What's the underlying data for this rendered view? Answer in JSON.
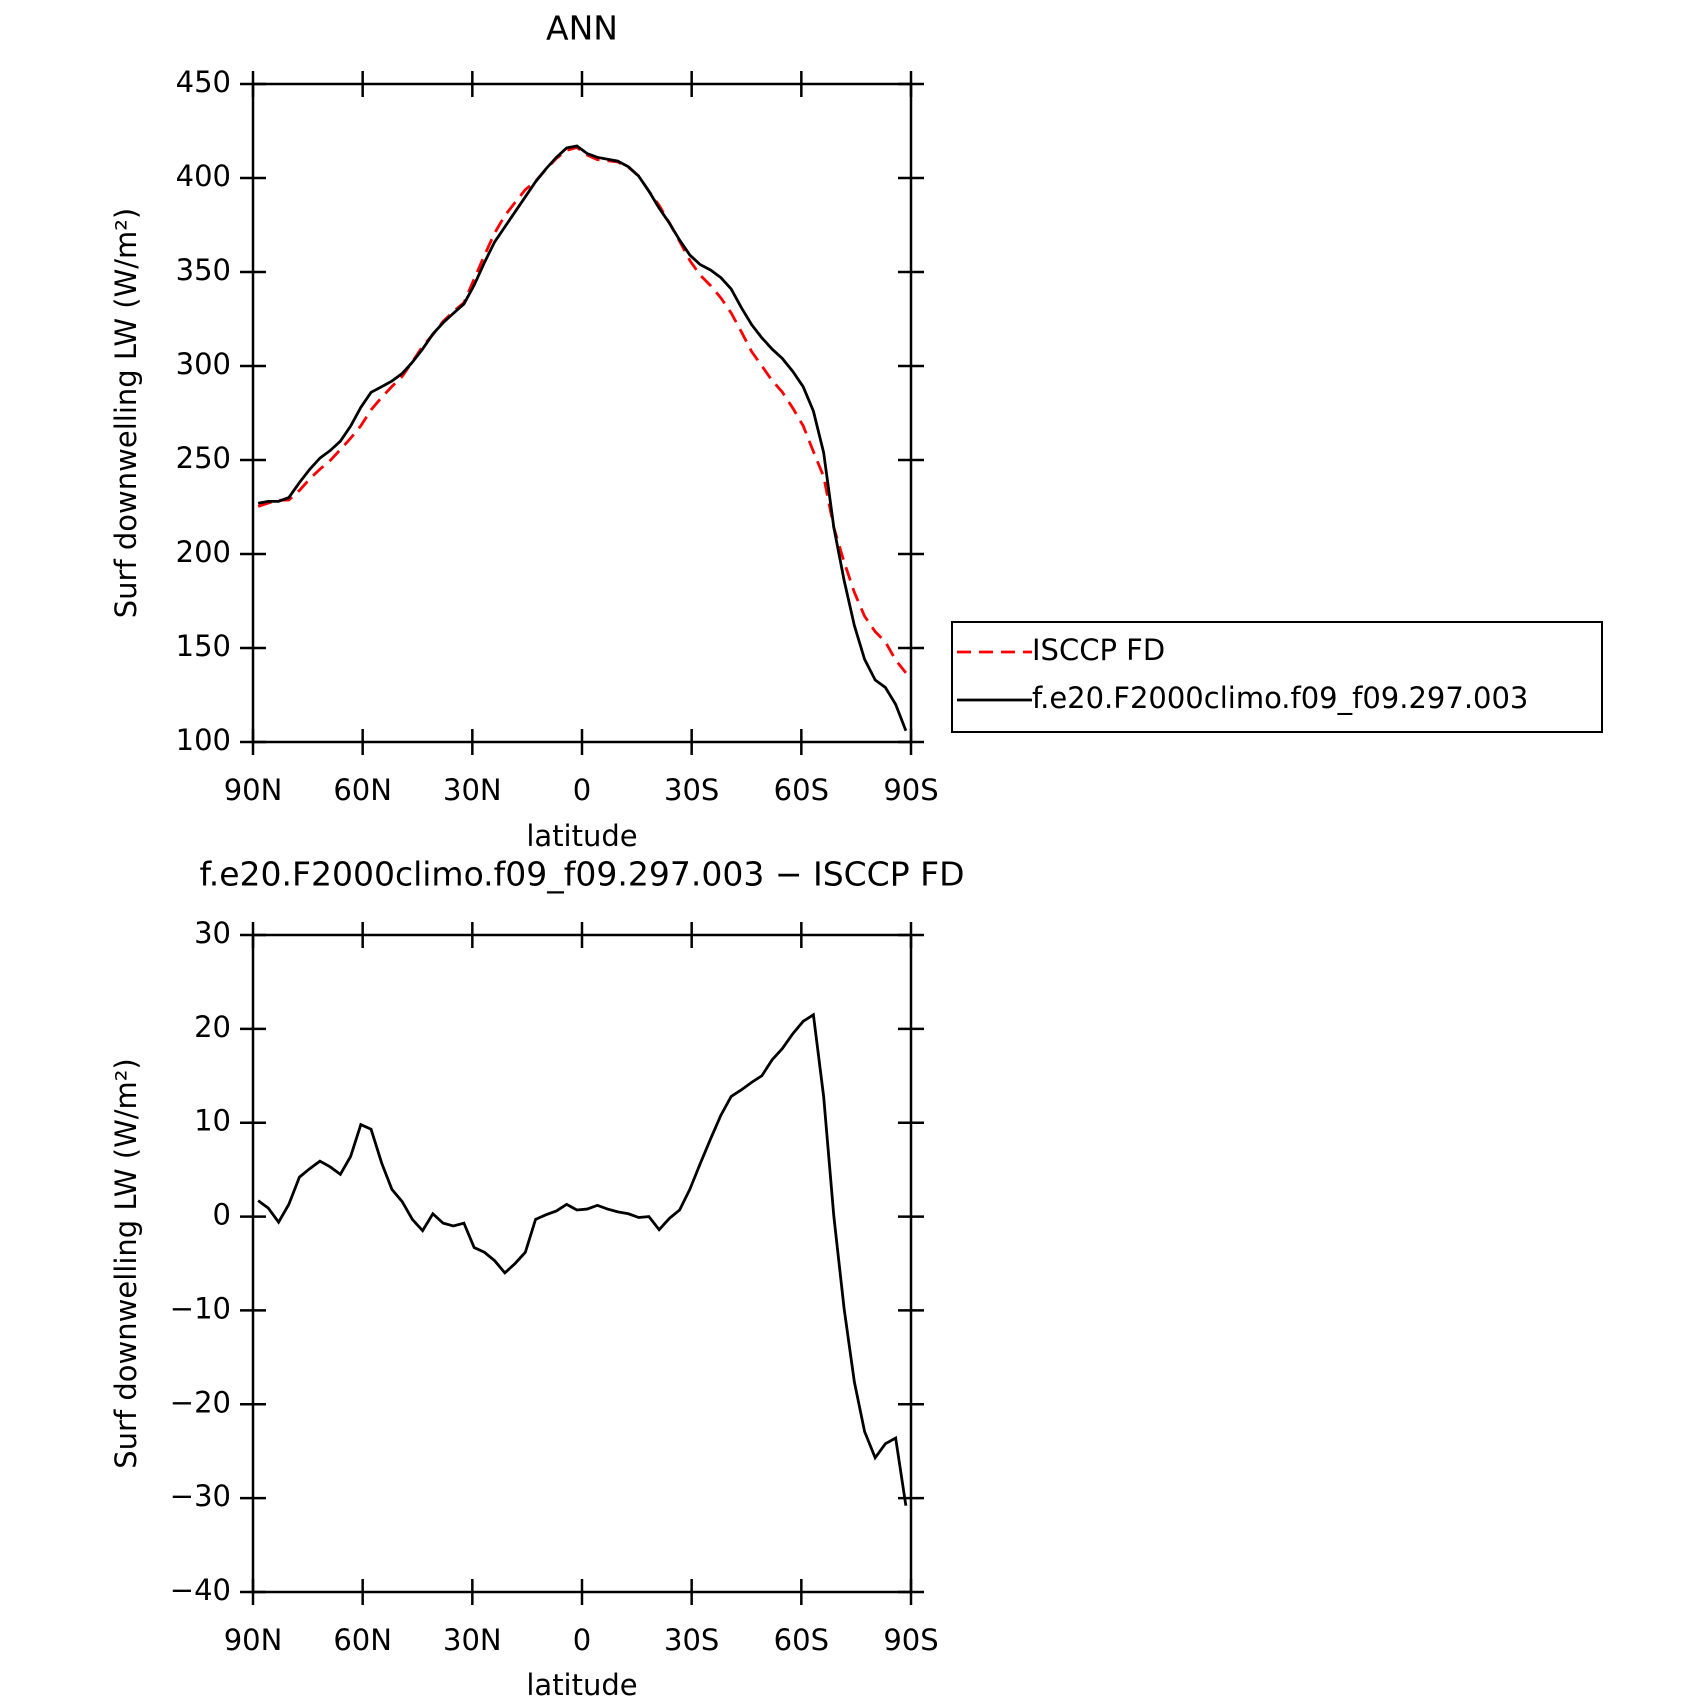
{
  "chart_data": [
    {
      "type": "line",
      "title": "ANN",
      "xlabel": "latitude",
      "ylabel": "Surf downwelling LW (W/m²)",
      "x": [
        88.6,
        85.8,
        83.0,
        80.2,
        77.3,
        74.5,
        71.7,
        68.9,
        66.1,
        63.3,
        60.5,
        57.7,
        54.8,
        52.0,
        49.2,
        46.4,
        43.6,
        40.8,
        38.0,
        35.2,
        32.3,
        29.5,
        26.7,
        23.9,
        21.1,
        18.3,
        15.5,
        12.7,
        9.8,
        7.0,
        4.2,
        1.4,
        -1.4,
        -4.2,
        -7.0,
        -9.8,
        -12.7,
        -15.5,
        -18.3,
        -21.1,
        -23.9,
        -26.7,
        -29.5,
        -32.3,
        -35.2,
        -38.0,
        -40.8,
        -43.6,
        -46.4,
        -49.2,
        -52.0,
        -54.8,
        -57.7,
        -60.5,
        -63.3,
        -66.1,
        -68.9,
        -71.7,
        -74.5,
        -77.3,
        -80.2,
        -83.0,
        -85.8,
        -88.6
      ],
      "series": [
        {
          "name": "ISCCP FD",
          "color": "#ff0000",
          "line_style": "dashed",
          "values": [
            225.3,
            227.1,
            228.6,
            228.7,
            233.8,
            239.9,
            245.1,
            249.7,
            255.5,
            261.6,
            268.2,
            276.7,
            283.3,
            289.1,
            294.4,
            302.3,
            310.5,
            316.7,
            323.7,
            329.0,
            333.7,
            346.3,
            358.8,
            370.7,
            380.0,
            387.0,
            393.8,
            398.3,
            404.8,
            410.4,
            414.7,
            416.3,
            412.2,
            409.8,
            409.2,
            408.5,
            405.7,
            401.1,
            393.0,
            385.4,
            376.2,
            366.3,
            356.1,
            348.4,
            342.7,
            336.2,
            328.2,
            318.2,
            307.7,
            300.0,
            292.3,
            286.1,
            277.5,
            268.2,
            254.5,
            241.2,
            214.0,
            195.8,
            179.6,
            166.9,
            158.7,
            153.2,
            143.6,
            136.8
          ]
        },
        {
          "name": "f.e20.F2000climo.f09_f09.297.003",
          "color": "#000000",
          "line_style": "solid",
          "values": [
            227,
            228,
            228,
            230,
            238,
            245,
            251,
            255,
            260,
            268,
            278,
            286,
            289,
            292,
            296,
            302,
            309,
            317,
            323,
            328,
            333,
            343,
            355,
            366,
            374,
            382,
            390,
            398,
            405,
            411,
            416,
            417,
            413,
            411,
            410,
            409,
            406,
            401,
            393,
            384,
            376,
            367,
            359,
            354,
            351,
            347,
            341,
            331,
            322,
            315,
            309,
            304,
            297,
            289,
            276,
            254,
            214,
            186,
            162,
            144,
            133,
            129,
            120,
            106
          ]
        }
      ],
      "xlim": [
        90,
        -90
      ],
      "ylim": [
        100,
        450
      ],
      "xticks": [
        {
          "value": 90,
          "label": "90N"
        },
        {
          "value": 60,
          "label": "60N"
        },
        {
          "value": 30,
          "label": "30N"
        },
        0,
        {
          "value": -30,
          "label": "30S"
        },
        {
          "value": -60,
          "label": "60S"
        },
        {
          "value": -90,
          "label": "90S"
        }
      ],
      "yticks": [
        100,
        150,
        200,
        250,
        300,
        350,
        400,
        450
      ],
      "legend": "right"
    },
    {
      "type": "line",
      "title": "f.e20.F2000climo.f09_f09.297.003 − ISCCP FD",
      "xlabel": "latitude",
      "ylabel": "Surf downwelling LW (W/m²)",
      "x": [
        88.6,
        85.8,
        83.0,
        80.2,
        77.3,
        74.5,
        71.7,
        68.9,
        66.1,
        63.3,
        60.5,
        57.7,
        54.8,
        52.0,
        49.2,
        46.4,
        43.6,
        40.8,
        38.0,
        35.2,
        32.3,
        29.5,
        26.7,
        23.9,
        21.1,
        18.3,
        15.5,
        12.7,
        9.8,
        7.0,
        4.2,
        1.4,
        -1.4,
        -4.2,
        -7.0,
        -9.8,
        -12.7,
        -15.5,
        -18.3,
        -21.1,
        -23.9,
        -26.7,
        -29.5,
        -32.3,
        -35.2,
        -38.0,
        -40.8,
        -43.6,
        -46.4,
        -49.2,
        -52.0,
        -54.8,
        -57.7,
        -60.5,
        -63.3,
        -66.1,
        -68.9,
        -71.7,
        -74.5,
        -77.3,
        -80.2,
        -83.0,
        -85.8,
        -88.6
      ],
      "series": [
        {
          "color": "#000000",
          "line_style": "solid",
          "values": [
            1.7,
            0.9,
            -0.6,
            1.3,
            4.2,
            5.1,
            5.9,
            5.3,
            4.5,
            6.4,
            9.8,
            9.3,
            5.7,
            2.9,
            1.6,
            -0.3,
            -1.5,
            0.3,
            -0.7,
            -1.0,
            -0.7,
            -3.3,
            -3.8,
            -4.7,
            -6.0,
            -5.0,
            -3.8,
            -0.3,
            0.2,
            0.6,
            1.3,
            0.7,
            0.8,
            1.2,
            0.8,
            0.5,
            0.3,
            -0.1,
            0.0,
            -1.4,
            -0.2,
            0.7,
            2.9,
            5.6,
            8.3,
            10.8,
            12.8,
            13.5,
            14.3,
            15.0,
            16.7,
            17.9,
            19.5,
            20.8,
            21.5,
            12.8,
            0,
            -9.8,
            -17.6,
            -22.9,
            -25.7,
            -24.2,
            -23.6,
            -30.8
          ]
        }
      ],
      "xlim": [
        90,
        -90
      ],
      "ylim": [
        -40,
        30
      ],
      "xticks": [
        {
          "value": 90,
          "label": "90N"
        },
        {
          "value": 60,
          "label": "60N"
        },
        {
          "value": 30,
          "label": "30N"
        },
        0,
        {
          "value": -30,
          "label": "30S"
        },
        {
          "value": -60,
          "label": "60S"
        },
        {
          "value": -90,
          "label": "90S"
        }
      ],
      "yticks": [
        {
          "value": -40,
          "label": "−40"
        },
        {
          "value": -30,
          "label": "−30"
        },
        {
          "value": -20,
          "label": "−20"
        },
        {
          "value": -10,
          "label": "−10"
        },
        0,
        10,
        20,
        30
      ]
    }
  ]
}
